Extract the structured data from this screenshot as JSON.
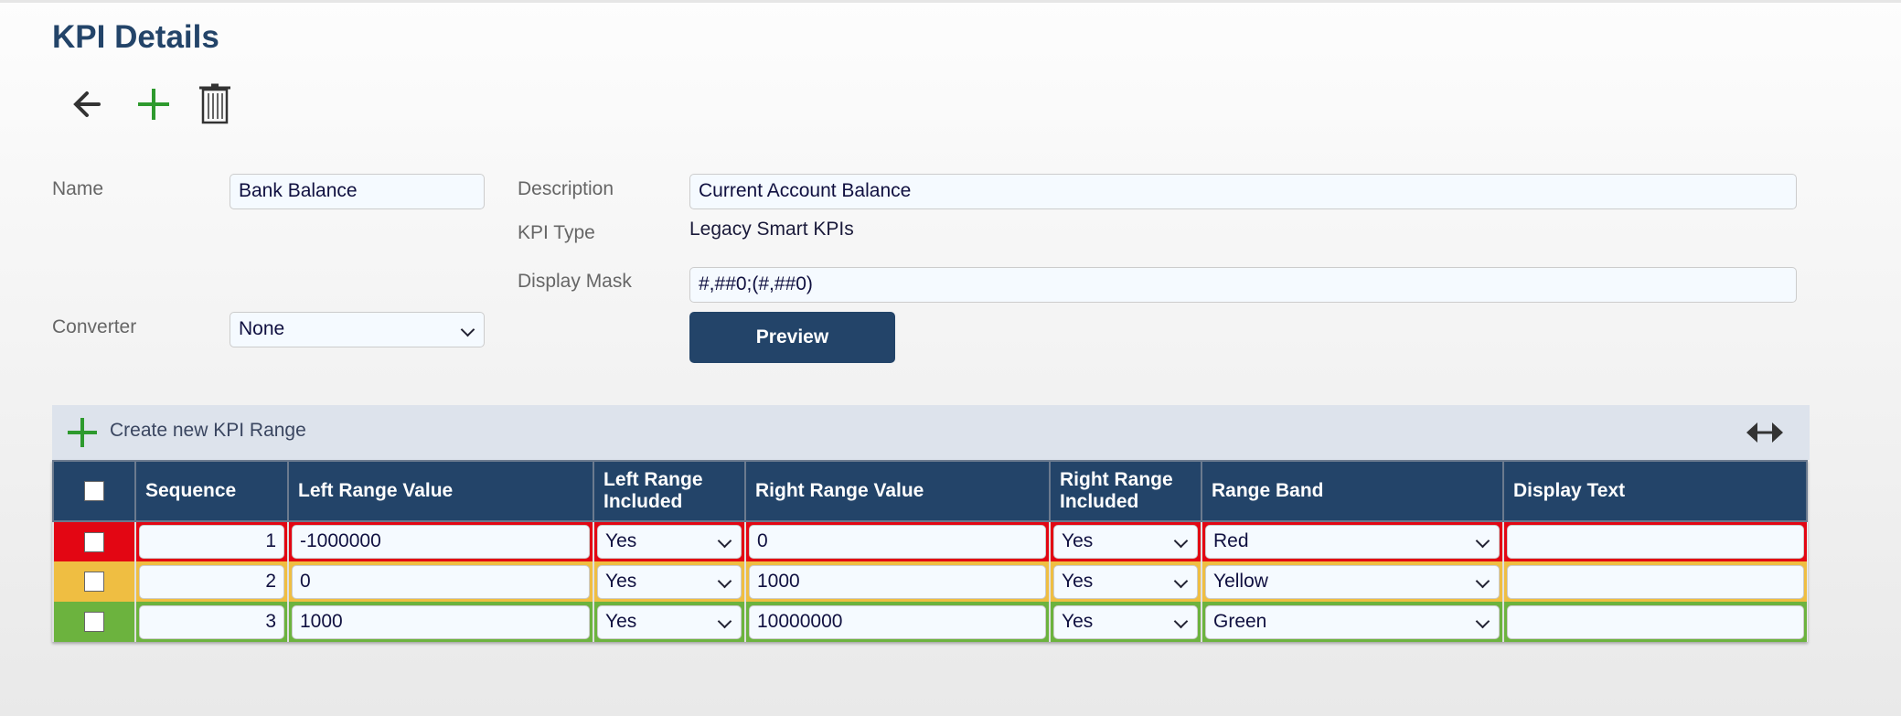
{
  "page": {
    "title": "KPI Details"
  },
  "toolbar": {
    "back": "arrow-left-icon",
    "add": "plus-icon",
    "delete": "trash-icon"
  },
  "form": {
    "name_label": "Name",
    "name_value": "Bank Balance",
    "converter_label": "Converter",
    "converter_value": "None",
    "description_label": "Description",
    "description_value": "Current Account Balance",
    "kpi_type_label": "KPI Type",
    "kpi_type_value": "Legacy Smart KPIs",
    "display_mask_label": "Display Mask",
    "display_mask_value": "#,##0;(#,##0)",
    "preview_label": "Preview"
  },
  "ranges": {
    "create_label": "Create new KPI Range",
    "columns": [
      "Sequence",
      "Left Range Value",
      "Left Range Included",
      "Right Range Value",
      "Right Range Included",
      "Range Band",
      "Display Text"
    ],
    "rows": [
      {
        "sequence": "1",
        "left": "-1000000",
        "left_inc": "Yes",
        "right": "0",
        "right_inc": "Yes",
        "band": "Red",
        "display": "",
        "color": "#e30613"
      },
      {
        "sequence": "2",
        "left": "0",
        "left_inc": "Yes",
        "right": "1000",
        "right_inc": "Yes",
        "band": "Yellow",
        "display": "",
        "color": "#efbe42"
      },
      {
        "sequence": "3",
        "left": "1000",
        "left_inc": "Yes",
        "right": "10000000",
        "right_inc": "Yes",
        "band": "Green",
        "display": "",
        "color": "#6cb33e"
      }
    ]
  },
  "colors": {
    "primary": "#234469",
    "add": "#2e9a2e"
  }
}
